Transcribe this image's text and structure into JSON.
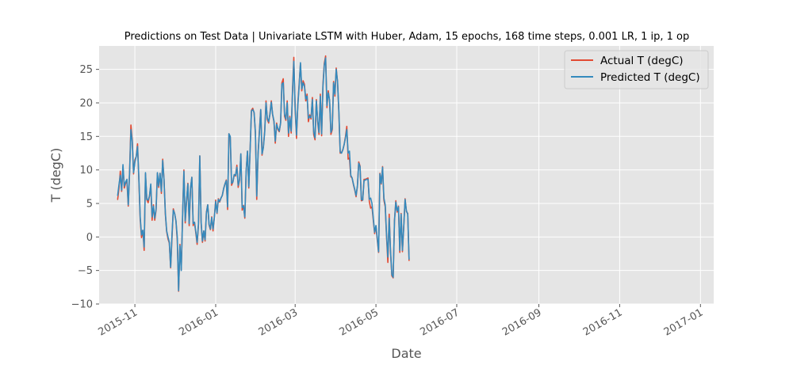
{
  "chart_data": {
    "type": "line",
    "title": "Predictions on Test Data  | Univariate LSTM with Huber, Adam, 15 epochs, 168 time steps, 0.001 LR, 1 ip, 1 op",
    "xlabel": "Date",
    "ylabel": "T (degC)",
    "xlim": [
      "2015-10-05",
      "2017-01-11"
    ],
    "ylim": [
      -10,
      28.5
    ],
    "grid": true,
    "legend": "top-right",
    "x_tick_labels": [
      "2015-11",
      "2016-01",
      "2016-03",
      "2016-05",
      "2016-07",
      "2016-09",
      "2016-11",
      "2017-01"
    ],
    "x_tick_dates": [
      "2015-11-01",
      "2016-01-01",
      "2016-03-01",
      "2016-05-01",
      "2016-07-01",
      "2016-09-01",
      "2016-11-01",
      "2017-01-01"
    ],
    "y_ticks": [
      -10,
      -5,
      0,
      5,
      10,
      15,
      20,
      25
    ],
    "x_start": "2015-10-19",
    "x_step_days": 1,
    "colors": {
      "actual": "#E24A33",
      "predicted": "#348ABD",
      "panel": "#E5E5E5",
      "grid": "#FFFFFF"
    },
    "series": [
      {
        "name": "Actual T (degC)",
        "color": "#E24A33",
        "values": [
          5.6,
          7.3,
          9.8,
          6.8,
          10.5,
          7.3,
          8.0,
          8.3,
          4.6,
          9.8,
          16.7,
          14.5,
          9.4,
          11.5,
          12.0,
          13.9,
          8.5,
          2.7,
          -0.1,
          1.0,
          -2.0,
          9.4,
          5.6,
          5.1,
          6.1,
          7.7,
          2.5,
          4.8,
          2.5,
          4.0,
          9.5,
          7.4,
          9.5,
          6.5,
          11.6,
          8.6,
          3.4,
          0.8,
          -0.3,
          -0.9,
          -4.6,
          -0.2,
          4.2,
          3.5,
          2.4,
          -0.5,
          -8.1,
          -1.1,
          -4.9,
          3.1,
          10.0,
          2.1,
          5.3,
          8.0,
          1.7,
          7.2,
          8.9,
          1.7,
          2.2,
          0.6,
          -1.1,
          1.8,
          12.1,
          2.1,
          -0.8,
          0.9,
          -0.6,
          3.7,
          4.8,
          1.8,
          1.1,
          3.0,
          0.9,
          3.0,
          5.5,
          3.5,
          5.7,
          5.2,
          5.8,
          6.2,
          7.2,
          7.9,
          8.5,
          4.1,
          15.4,
          14.9,
          7.7,
          8.2,
          9.3,
          9.1,
          10.7,
          7.4,
          8.5,
          12.4,
          4.0,
          4.7,
          2.8,
          9.8,
          12.8,
          7.3,
          13.1,
          18.9,
          19.2,
          18.5,
          15.4,
          5.6,
          12.5,
          15.8,
          19.0,
          12.2,
          13.5,
          15.8,
          20.3,
          17.5,
          17.0,
          18.5,
          20.3,
          18.2,
          17.2,
          14.0,
          17.0,
          16.0,
          15.7,
          17.0,
          23.0,
          23.6,
          18.0,
          17.4,
          20.3,
          15.0,
          18.0,
          15.5,
          22.0,
          26.8,
          19.0,
          14.7,
          19.8,
          22.8,
          25.8,
          21.8,
          23.3,
          22.8,
          20.3,
          21.3,
          17.2,
          18.2,
          17.6,
          20.8,
          15.3,
          14.5,
          20.5,
          17.2,
          15.3,
          21.3,
          15.1,
          22.8,
          25.9,
          27.0,
          19.3,
          21.8,
          20.3,
          15.3,
          16.0,
          23.2,
          21.0,
          25.2,
          23.1,
          18.5,
          12.5,
          12.6,
          13.0,
          13.8,
          15.0,
          16.5,
          11.6,
          11.8,
          9.0,
          8.8,
          7.8,
          7.0,
          6.0,
          7.6,
          11.2,
          10.6,
          5.4,
          5.5,
          8.6,
          8.6,
          8.7,
          8.8,
          5.3,
          4.3,
          4.5,
          2.5,
          0.5,
          1.6,
          -0.5,
          -2.3,
          9.5,
          7.9,
          10.5,
          5.5,
          4.5,
          0.0,
          -3.8,
          3.4,
          -2.3,
          -5.8,
          -6.1,
          2.5,
          5.4,
          3.7,
          4.6,
          -2.3,
          3.5,
          -2.2,
          1.6,
          5.7,
          3.8,
          3.5,
          -3.5
        ]
      },
      {
        "name": "Predicted T (degC)",
        "color": "#348ABD",
        "values": [
          6.2,
          7.8,
          9.2,
          7.0,
          10.8,
          7.6,
          8.2,
          8.6,
          4.8,
          9.6,
          16.0,
          14.2,
          9.6,
          11.2,
          12.0,
          13.5,
          8.8,
          3.0,
          0.3,
          1.0,
          -1.5,
          9.6,
          5.6,
          5.5,
          6.1,
          7.9,
          3.0,
          4.6,
          2.8,
          4.2,
          9.6,
          7.6,
          9.5,
          6.8,
          11.4,
          8.5,
          3.6,
          0.9,
          0.0,
          -0.8,
          -4.5,
          0.3,
          4.0,
          3.5,
          2.4,
          0.0,
          -8.0,
          -1.3,
          -5.0,
          3.0,
          9.8,
          2.4,
          5.4,
          7.9,
          2.0,
          7.3,
          8.9,
          2.0,
          2.2,
          0.8,
          -0.8,
          1.9,
          12.1,
          2.3,
          -0.6,
          0.9,
          -0.4,
          3.6,
          4.8,
          1.9,
          1.2,
          2.9,
          1.2,
          2.9,
          5.3,
          3.6,
          5.6,
          5.3,
          5.8,
          6.2,
          7.2,
          7.9,
          8.4,
          4.5,
          15.4,
          15.0,
          8.0,
          8.2,
          9.3,
          9.2,
          10.4,
          7.7,
          8.5,
          12.4,
          4.4,
          4.6,
          3.0,
          9.8,
          12.8,
          7.5,
          13.0,
          18.8,
          19.0,
          18.6,
          15.6,
          6.1,
          12.3,
          15.6,
          19.0,
          12.4,
          13.3,
          15.6,
          20.0,
          17.7,
          17.2,
          18.3,
          20.1,
          18.3,
          17.3,
          14.3,
          16.8,
          16.2,
          15.8,
          17.0,
          22.8,
          23.0,
          18.3,
          17.6,
          20.0,
          15.5,
          17.8,
          15.8,
          21.5,
          26.2,
          19.4,
          15.2,
          19.5,
          22.5,
          26.0,
          22.1,
          23.0,
          22.5,
          20.6,
          21.0,
          17.7,
          18.0,
          17.8,
          20.5,
          15.7,
          14.8,
          20.3,
          17.5,
          15.6,
          21.0,
          15.4,
          22.5,
          25.6,
          26.7,
          19.6,
          21.5,
          20.4,
          15.6,
          16.2,
          23.0,
          21.3,
          25.0,
          23.2,
          18.8,
          12.7,
          12.5,
          13.0,
          13.8,
          14.8,
          16.0,
          12.5,
          12.8,
          9.2,
          8.8,
          7.9,
          7.1,
          6.2,
          7.6,
          11.0,
          10.5,
          5.6,
          5.5,
          8.4,
          8.5,
          8.6,
          8.6,
          5.6,
          5.8,
          5.0,
          2.8,
          0.7,
          1.7,
          -0.2,
          -2.2,
          9.4,
          8.0,
          10.4,
          5.8,
          4.8,
          0.3,
          -3.0,
          2.8,
          -2.0,
          -5.6,
          -6.0,
          2.4,
          5.2,
          3.9,
          4.5,
          -2.0,
          3.4,
          -2.0,
          1.6,
          5.6,
          3.9,
          3.4,
          -3.3
        ]
      }
    ]
  }
}
